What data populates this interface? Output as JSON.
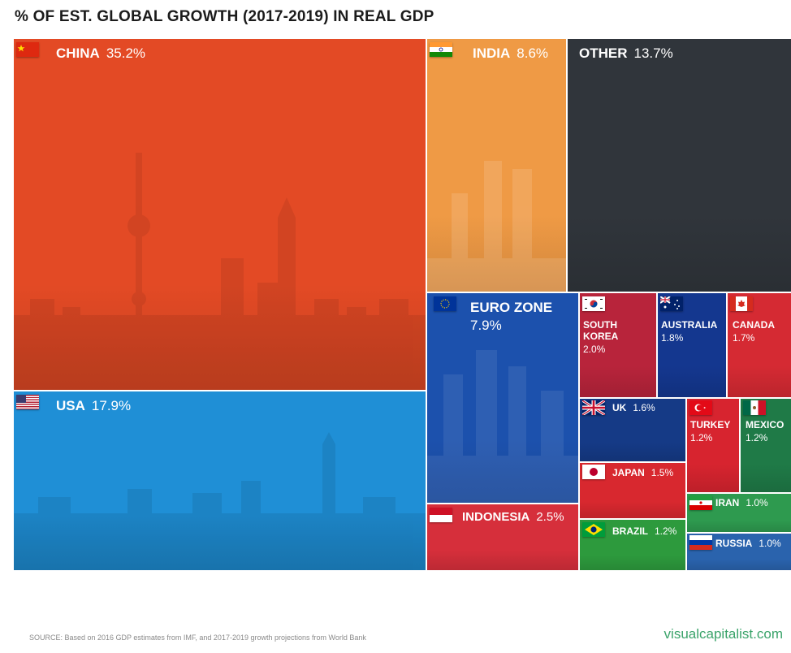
{
  "title": "% OF EST. GLOBAL GROWTH (2017-2019) IN REAL GDP",
  "source": "SOURCE: Based on 2016 GDP estimates from IMF, and 2017-2019 growth projections from World Bank",
  "brand": "visualcapitalist.com",
  "colors": {
    "china": "#e34a25",
    "usa": "#1f8fd6",
    "india": "#ef9a45",
    "other": "#30353b",
    "euro": "#1c51ad",
    "indonesia": "#d62f3b",
    "south_korea": "#b8243b",
    "australia": "#14378f",
    "canada": "#d52a33",
    "uk": "#153a86",
    "turkey": "#d7242f",
    "mexico": "#1f7a47",
    "japan": "#d8282f",
    "iran": "#2e9a4f",
    "brazil": "#2d9a3d",
    "russia": "#2a63ad"
  },
  "chart_data": {
    "type": "treemap",
    "title": "% OF EST. GLOBAL GROWTH (2017-2019) IN REAL GDP",
    "unit": "%",
    "items": [
      {
        "label": "CHINA",
        "value": 35.2,
        "value_label": "35.2%"
      },
      {
        "label": "USA",
        "value": 17.9,
        "value_label": "17.9%"
      },
      {
        "label": "INDIA",
        "value": 8.6,
        "value_label": "8.6%"
      },
      {
        "label": "OTHER",
        "value": 13.7,
        "value_label": "13.7%"
      },
      {
        "label": "EURO ZONE",
        "value": 7.9,
        "value_label": "7.9%"
      },
      {
        "label": "INDONESIA",
        "value": 2.5,
        "value_label": "2.5%"
      },
      {
        "label": "SOUTH KOREA",
        "value": 2.0,
        "value_label": "2.0%"
      },
      {
        "label": "AUSTRALIA",
        "value": 1.8,
        "value_label": "1.8%"
      },
      {
        "label": "CANADA",
        "value": 1.7,
        "value_label": "1.7%"
      },
      {
        "label": "UK",
        "value": 1.6,
        "value_label": "1.6%"
      },
      {
        "label": "TURKEY",
        "value": 1.2,
        "value_label": "1.2%"
      },
      {
        "label": "MEXICO",
        "value": 1.2,
        "value_label": "1.2%"
      },
      {
        "label": "JAPAN",
        "value": 1.5,
        "value_label": "1.5%"
      },
      {
        "label": "IRAN",
        "value": 1.0,
        "value_label": "1.0%"
      },
      {
        "label": "BRAZIL",
        "value": 1.2,
        "value_label": "1.2%"
      },
      {
        "label": "RUSSIA",
        "value": 1.0,
        "value_label": "1.0%"
      }
    ]
  },
  "labels": {
    "china": {
      "name": "CHINA",
      "pct": "35.2%"
    },
    "usa": {
      "name": "USA",
      "pct": "17.9%"
    },
    "india": {
      "name": "INDIA",
      "pct": "8.6%"
    },
    "other": {
      "name": "OTHER",
      "pct": "13.7%"
    },
    "euro": {
      "name": "EURO ZONE",
      "pct": "7.9%"
    },
    "indonesia": {
      "name": "INDONESIA",
      "pct": "2.5%"
    },
    "south_korea": {
      "name_line1": "SOUTH",
      "name_line2": "KOREA",
      "pct": "2.0%"
    },
    "australia": {
      "name": "AUSTRALIA",
      "pct": "1.8%"
    },
    "canada": {
      "name": "CANADA",
      "pct": "1.7%"
    },
    "uk": {
      "name": "UK",
      "pct": "1.6%"
    },
    "turkey": {
      "name": "TURKEY",
      "pct": "1.2%"
    },
    "mexico": {
      "name": "MEXICO",
      "pct": "1.2%"
    },
    "japan": {
      "name": "JAPAN",
      "pct": "1.5%"
    },
    "iran": {
      "name": "IRAN",
      "pct": "1.0%"
    },
    "brazil": {
      "name": "BRAZIL",
      "pct": "1.2%"
    },
    "russia": {
      "name": "RUSSIA",
      "pct": "1.0%"
    }
  }
}
